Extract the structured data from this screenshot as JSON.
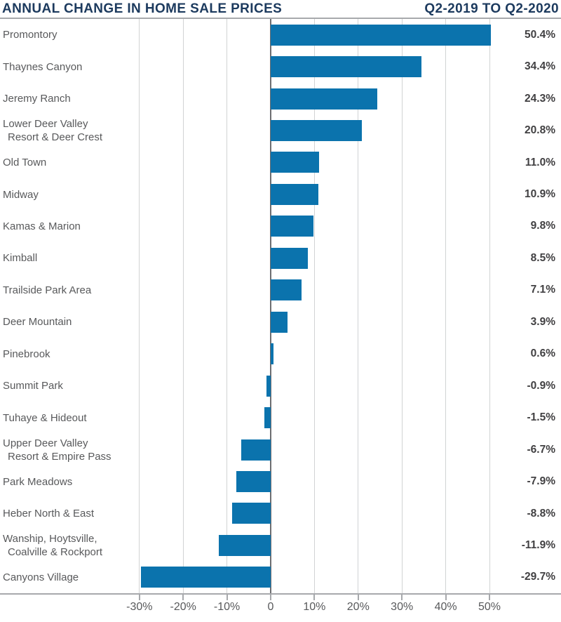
{
  "header": {
    "title": "ANNUAL CHANGE IN HOME SALE PRICES",
    "period": "Q2-2019 TO Q2-2020"
  },
  "colors": {
    "bar": "#0b73ad",
    "title": "#1c3a5e",
    "label": "#58595b",
    "value": "#414042",
    "grid": "#d1d3d4",
    "zero": "#6d6e71",
    "axis": "#a7a9ac"
  },
  "chart_data": {
    "type": "bar",
    "orientation": "horizontal",
    "title": "ANNUAL CHANGE IN HOME SALE PRICES",
    "subtitle": "Q2-2019 TO Q2-2020",
    "unit": "%",
    "grid": true,
    "categories": [
      "Promontory",
      "Thaynes Canyon",
      "Jeremy Ranch",
      "Lower Deer Valley\nResort & Deer Crest",
      "Old Town",
      "Midway",
      "Kamas & Marion",
      "Kimball",
      "Trailside Park Area",
      "Deer Mountain",
      "Pinebrook",
      "Summit Park",
      "Tuhaye & Hideout",
      "Upper Deer Valley\nResort & Empire Pass",
      "Park Meadows",
      "Heber North & East",
      "Wanship, Hoytsville,\nCoalville & Rockport",
      "Canyons Village"
    ],
    "values": [
      50.4,
      34.4,
      24.3,
      20.8,
      11.0,
      10.9,
      9.8,
      8.5,
      7.1,
      3.9,
      0.6,
      -0.9,
      -1.5,
      -6.7,
      -7.9,
      -8.8,
      -11.9,
      -29.7
    ],
    "value_labels": [
      "50.4%",
      "34.4%",
      "24.3%",
      "20.8%",
      "11.0%",
      "10.9%",
      "9.8%",
      "8.5%",
      "7.1%",
      "3.9%",
      "0.6%",
      "-0.9%",
      "-1.5%",
      "-6.7%",
      "-7.9%",
      "-8.8%",
      "-11.9%",
      "-29.7%"
    ],
    "x_axis": {
      "xlim": [
        -30,
        50
      ],
      "ticks": [
        -30,
        -20,
        -10,
        0,
        10,
        20,
        30,
        40,
        50
      ],
      "tick_labels": [
        "-30%",
        "-20%",
        "-10%",
        "0",
        "10%",
        "20%",
        "30%",
        "40%",
        "50%"
      ]
    },
    "legend": null
  }
}
